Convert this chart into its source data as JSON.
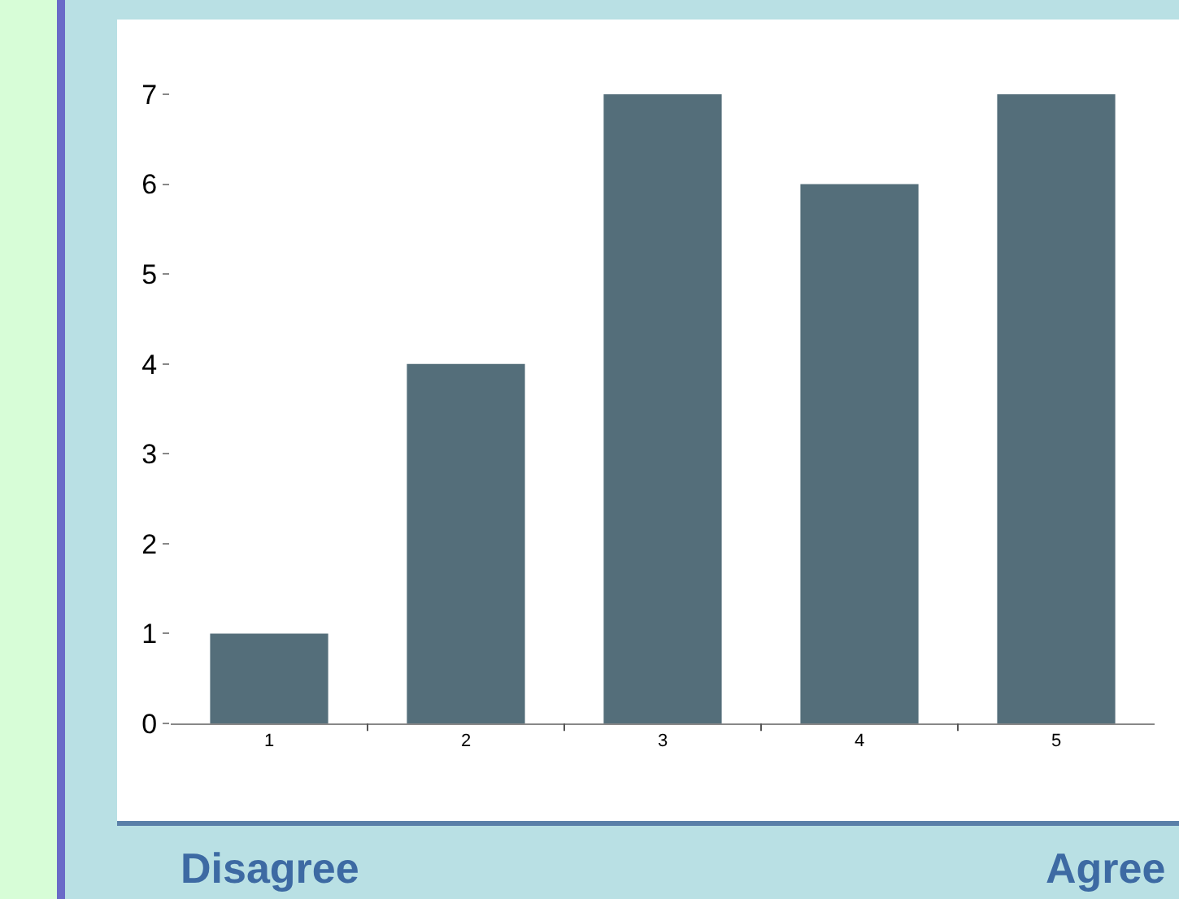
{
  "chart_data": {
    "type": "bar",
    "categories": [
      "1",
      "2",
      "3",
      "4",
      "5"
    ],
    "values": [
      1,
      4,
      7,
      6,
      7
    ],
    "color": "#546e7a",
    "ylim": [
      0,
      7
    ],
    "yticks": [
      0,
      1,
      2,
      3,
      4,
      5,
      6,
      7
    ],
    "grid": false,
    "legend": false,
    "annotations": [
      "Disagree",
      "Agree"
    ]
  }
}
